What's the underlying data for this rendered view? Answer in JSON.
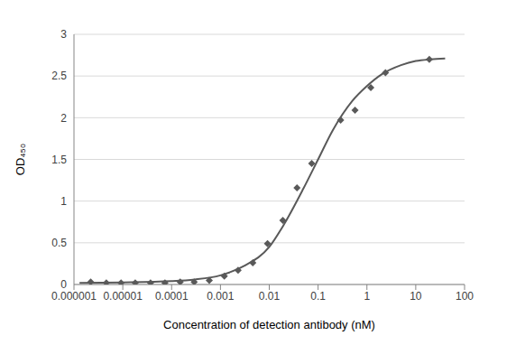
{
  "chart_data": {
    "type": "scatter",
    "xlabel": "Concentration of detection antibody (nM)",
    "ylabel": "OD₄₅₀",
    "log": "x",
    "grid": true,
    "xlim": [
      1e-06,
      100
    ],
    "xticks": [
      1e-06,
      1e-05,
      0.0001,
      0.001,
      0.01,
      0.1,
      1,
      10,
      100
    ],
    "ylim": [
      0,
      3
    ],
    "yticks": [
      0,
      0.5,
      1,
      1.5,
      2,
      2.5,
      3
    ],
    "series": [
      {
        "type": "scatter",
        "marker": "diamond",
        "color": "#595959",
        "x": [
          2.2e-06,
          4.6e-06,
          9.2e-06,
          1.8e-05,
          3.7e-05,
          7.3e-05,
          0.00015,
          0.00029,
          0.00059,
          0.0012,
          0.0023,
          0.0046,
          0.0092,
          0.019,
          0.037,
          0.074,
          0.29,
          0.57,
          1.2,
          2.4,
          19
        ],
        "values": [
          0.03,
          0.02,
          0.02,
          0.02,
          0.02,
          0.02,
          0.03,
          0.03,
          0.05,
          0.1,
          0.17,
          0.26,
          0.49,
          0.77,
          1.16,
          1.45,
          1.97,
          2.09,
          2.36,
          2.54,
          2.7
        ]
      },
      {
        "type": "line",
        "line_style": "solid",
        "color": "#595959",
        "x": [
          1.3e-06,
          1e-05,
          0.0001,
          0.0003,
          0.001,
          0.003,
          0.01,
          0.02,
          0.05,
          0.1,
          0.2,
          0.5,
          1,
          2,
          5,
          10,
          20,
          40
        ],
        "values": [
          0.02,
          0.025,
          0.04,
          0.06,
          0.11,
          0.22,
          0.45,
          0.72,
          1.15,
          1.5,
          1.85,
          2.2,
          2.38,
          2.52,
          2.63,
          2.68,
          2.7,
          2.71
        ]
      }
    ]
  }
}
